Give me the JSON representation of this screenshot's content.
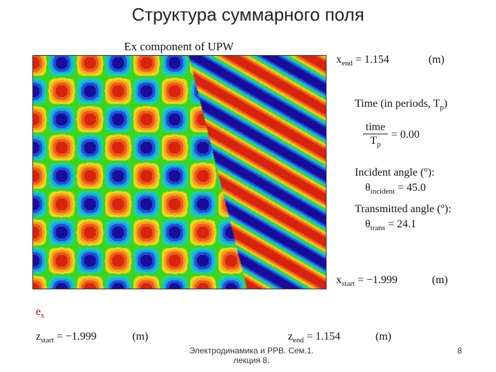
{
  "slide_title": "Структура суммарного поля",
  "plot": {
    "title": "Ex component of UPW",
    "colors": [
      "#1a0c9a",
      "#1f4fd8",
      "#1aa8e0",
      "#1dd0a8",
      "#3ad61f",
      "#f0d61c",
      "#f4a21d",
      "#f05a1a",
      "#d8230f"
    ]
  },
  "right_panel": {
    "xend": {
      "symbol": "x",
      "subscript": "end",
      "eq": "=",
      "value": "1.154",
      "unit": "(m)"
    },
    "time_heading": {
      "text": "Time (in periods, T",
      "subscript": "p",
      "close": ")"
    },
    "time_ratio": {
      "numerator": "time",
      "denominator_symbol": "T",
      "denominator_subscript": "p",
      "eq": "=",
      "value": "0.00"
    },
    "incident_heading": {
      "text": "Incident angle (",
      "degree": "o",
      "close": "):"
    },
    "incident": {
      "symbol": "θ",
      "subscript": "incident",
      "eq": "=",
      "value": "45.0"
    },
    "transmitted_heading": {
      "text": "Transmitted angle (",
      "degree": "o",
      "close": "):"
    },
    "transmitted": {
      "symbol": "θ",
      "subscript": "trans",
      "eq": "=",
      "value": "24.1"
    },
    "xstart": {
      "symbol": "x",
      "subscript": "start",
      "eq": "=",
      "value": "−1.999",
      "unit": "(m)"
    }
  },
  "bottom_panel": {
    "ex_label": {
      "symbol": "e",
      "subscript": "x"
    },
    "zstart": {
      "symbol": "z",
      "subscript": "start",
      "eq": "=",
      "value": "−1.999",
      "unit": "(m)"
    },
    "zend": {
      "symbol": "z",
      "subscript": "end",
      "eq": "=",
      "value": "1.154",
      "unit": "(m)"
    }
  },
  "footer": {
    "line1": "Электродинамика и РРВ. Сем.1.",
    "line2": "лекция 8.",
    "page_number": "8"
  }
}
